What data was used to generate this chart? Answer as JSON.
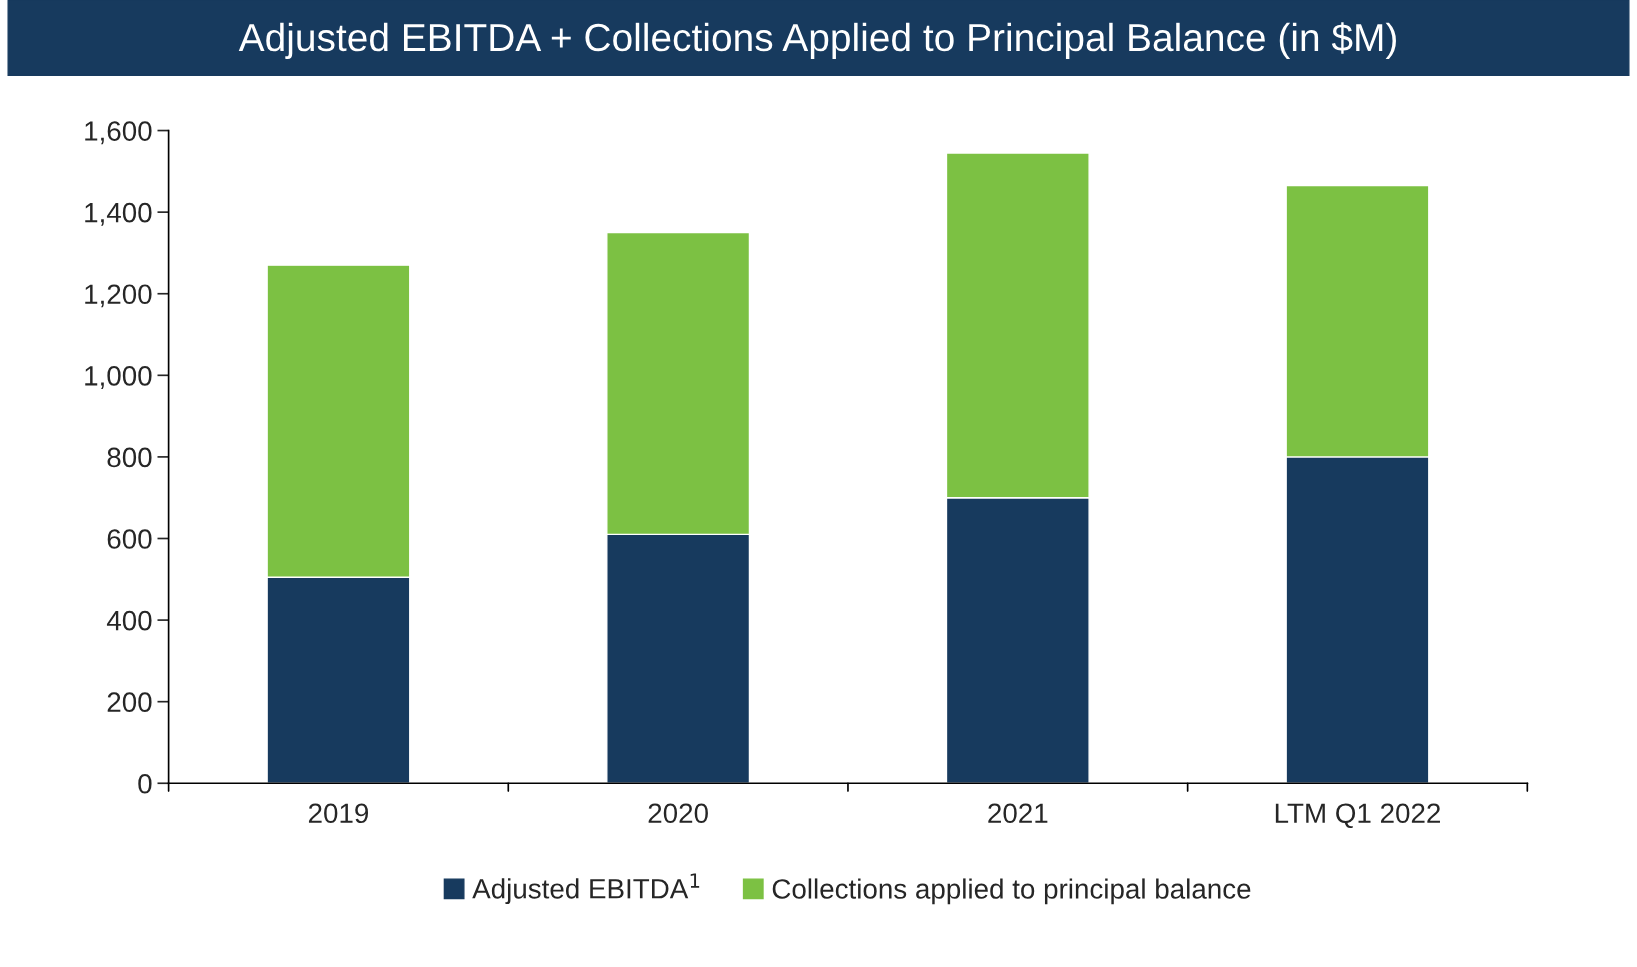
{
  "chart_data": {
    "type": "bar",
    "title": "Adjusted EBITDA + Collections Applied to Principal Balance (in $M)",
    "categories": [
      "2019",
      "2020",
      "2021",
      "LTM Q1 2022"
    ],
    "stacked": true,
    "series": [
      {
        "name": "Adjusted EBITDA$^{1}$",
        "color": "#173a5e",
        "values": [
          505,
          610,
          700,
          800
        ]
      },
      {
        "name": "Collections applied to principal balance",
        "color": "#7cc143",
        "values": [
          765,
          740,
          845,
          665
        ]
      }
    ],
    "ylim": [
      0,
      1600
    ],
    "yticks": [
      0,
      200,
      400,
      600,
      800,
      {
        "value": 1000,
        "label": "1,000"
      },
      {
        "value": 1200,
        "label": "1,200"
      },
      {
        "value": 1400,
        "label": "1,400"
      },
      {
        "value": 1600,
        "label": "1,600"
      }
    ],
    "grid": false,
    "legend": "bottom"
  }
}
